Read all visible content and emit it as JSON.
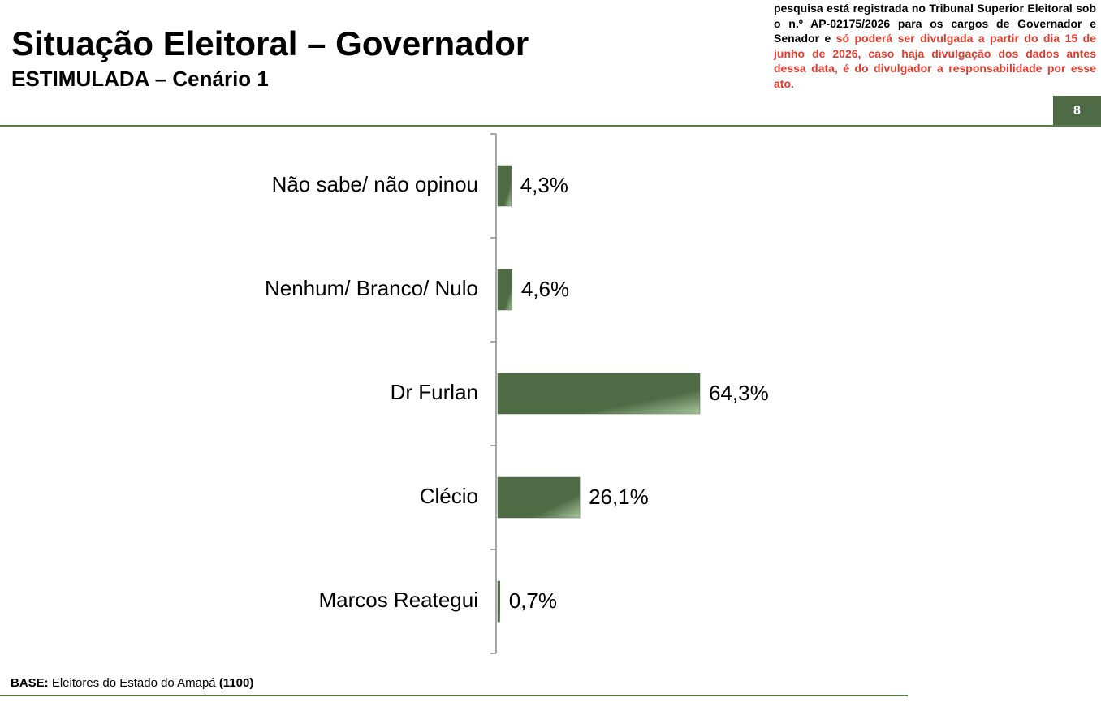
{
  "chart_data": {
    "type": "bar",
    "orientation": "horizontal",
    "title": "Situação Eleitoral – Governador",
    "subtitle": "ESTIMULADA – Cenário 1",
    "categories": [
      "Não sabe/ não opinou",
      "Nenhum/ Branco/ Nulo",
      "Dr Furlan",
      "Clécio",
      "Marcos Reategui"
    ],
    "values": [
      4.3,
      4.6,
      64.3,
      26.1,
      0.7
    ],
    "value_labels": [
      "4,3%",
      "4,6%",
      "64,3%",
      "26,1%",
      "0,7%"
    ],
    "color": "#4e6b45"
  },
  "notice": {
    "text": "pesquisa está registrada no Tribunal Superior Eleitoral sob o n.º AP-02175/2026 para os cargos de Governador e Senador e ",
    "warning": "só poderá ser divulgada a partir do dia 15 de junho de 2026, caso haja divulgação dos dados antes dessa data, é do divulgador a responsabilidade por esse ato."
  },
  "page_number": 8,
  "footer": {
    "label": "BASE:",
    "text": "Eleitores do Estado do Amapá",
    "sample": "(1100)"
  }
}
